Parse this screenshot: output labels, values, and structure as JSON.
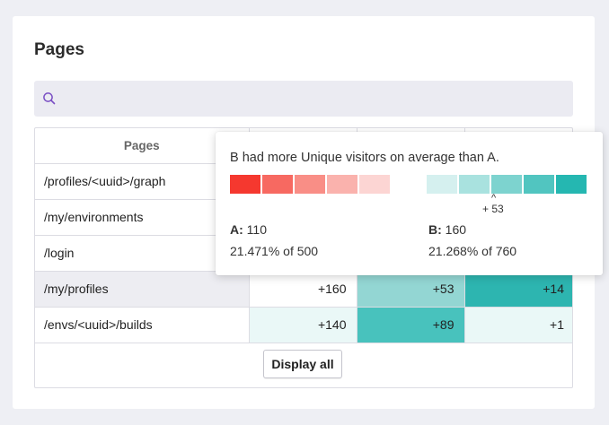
{
  "title": "Pages",
  "search": {
    "placeholder": "",
    "value": ""
  },
  "table": {
    "headers": [
      "Pages",
      "",
      "",
      ""
    ],
    "rows": [
      {
        "page": "/profiles/<uuid>/graph",
        "c1": "",
        "c2": "",
        "c3": ""
      },
      {
        "page": "/my/environments",
        "c1": "",
        "c2": "",
        "c3": ""
      },
      {
        "page": "/login",
        "c1": "",
        "c2": "",
        "c3": ""
      },
      {
        "page": "/my/profiles",
        "c1": "+160",
        "c2": "+53",
        "c3": "+14"
      },
      {
        "page": "/envs/<uuid>/builds",
        "c1": "+140",
        "c2": "+89",
        "c3": "+1"
      }
    ],
    "row_colors": [
      [
        "#ffffff",
        "#ffffff",
        "#ffffff"
      ],
      [
        "#ffffff",
        "#ffffff",
        "#ffffff"
      ],
      [
        "#ffffff",
        "#ffffff",
        "#ffffff"
      ],
      [
        "#ffffff",
        "#93d6d3",
        "#2db5b0"
      ],
      [
        "#eaf8f7",
        "#48c2bd",
        "#eaf8f7"
      ]
    ],
    "display_all_label": "Display all"
  },
  "tooltip": {
    "message": "B had more Unique visitors on average than A.",
    "scale_a_colors": [
      "#f5382f",
      "#f76961",
      "#f98e86",
      "#fab2ad",
      "#fcd5d3"
    ],
    "scale_b_colors": [
      "#d5f0ef",
      "#a9e2df",
      "#7dd3cf",
      "#51c5c0",
      "#25b7b1"
    ],
    "marker_caret": "^",
    "marker_value": "+ 53",
    "a_label": "A:",
    "a_value": "110",
    "a_detail": "21.471% of 500",
    "b_label": "B:",
    "b_value": "160",
    "b_detail": "21.268% of 760"
  }
}
